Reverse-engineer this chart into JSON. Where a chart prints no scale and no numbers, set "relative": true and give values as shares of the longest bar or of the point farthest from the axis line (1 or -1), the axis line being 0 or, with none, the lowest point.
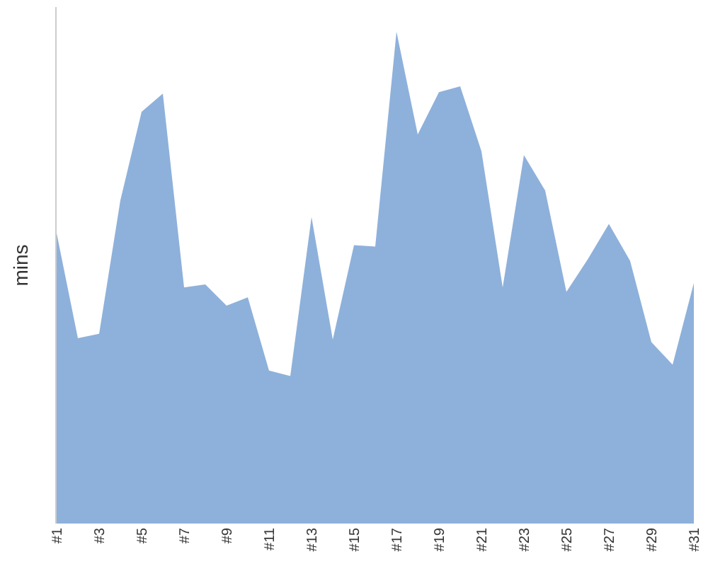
{
  "chart_data": {
    "type": "area",
    "ylabel": "mins",
    "relative": true,
    "categories": [
      "#1",
      null,
      "#3",
      null,
      "#5",
      null,
      "#7",
      null,
      "#9",
      null,
      "#11",
      null,
      "#13",
      null,
      "#15",
      null,
      "#17",
      null,
      "#19",
      null,
      "#21",
      null,
      "#23",
      null,
      "#25",
      null,
      "#27",
      null,
      "#29",
      null,
      "#31"
    ],
    "series": [
      {
        "color": "#8eb1db",
        "values": [
          0.59,
          0.377,
          0.386,
          0.657,
          0.837,
          0.874,
          0.48,
          0.486,
          0.443,
          0.46,
          0.311,
          0.3,
          0.623,
          0.374,
          0.566,
          0.563,
          1.0,
          0.791,
          0.877,
          0.889,
          0.757,
          0.48,
          0.749,
          0.677,
          0.471,
          0.537,
          0.609,
          0.534,
          0.369,
          0.323,
          0.489
        ]
      }
    ]
  }
}
